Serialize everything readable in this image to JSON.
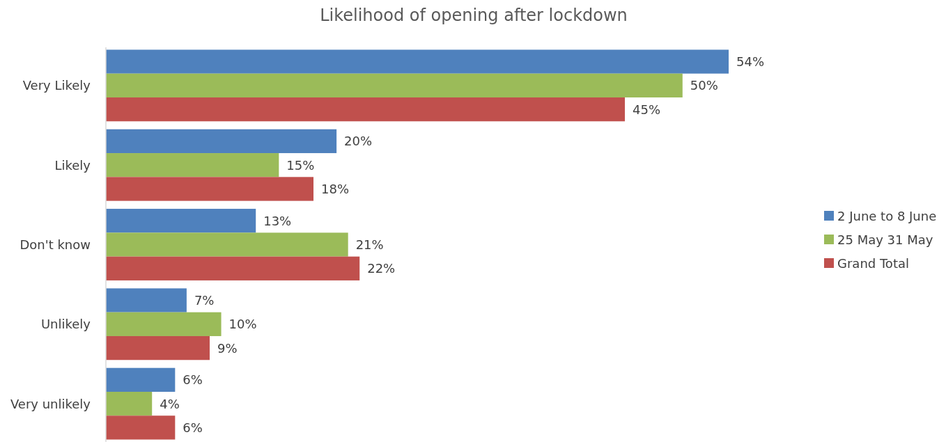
{
  "chart_data": {
    "type": "bar",
    "orientation": "horizontal",
    "title": "Likelihood of opening after lockdown",
    "categories": [
      "Very Likely",
      "Likely",
      "Don't know",
      "Unlikely",
      "Very unlikely"
    ],
    "series": [
      {
        "name": "2 June to 8 June",
        "color": "#4f81bd",
        "values": [
          54,
          20,
          13,
          7,
          6
        ],
        "value_labels": [
          "54%",
          "20%",
          "13%",
          "7%",
          "6%"
        ]
      },
      {
        "name": "25 May 31 May",
        "color": "#9bbb59",
        "values": [
          50,
          15,
          21,
          10,
          4
        ],
        "value_labels": [
          "50%",
          "15%",
          "21%",
          "10%",
          "4%"
        ]
      },
      {
        "name": "Grand Total",
        "color": "#c0504d",
        "values": [
          45,
          18,
          22,
          9,
          6
        ],
        "value_labels": [
          "45%",
          "18%",
          "22%",
          "9%",
          "6%"
        ]
      }
    ],
    "tick_labels": "y",
    "legend": "right"
  }
}
